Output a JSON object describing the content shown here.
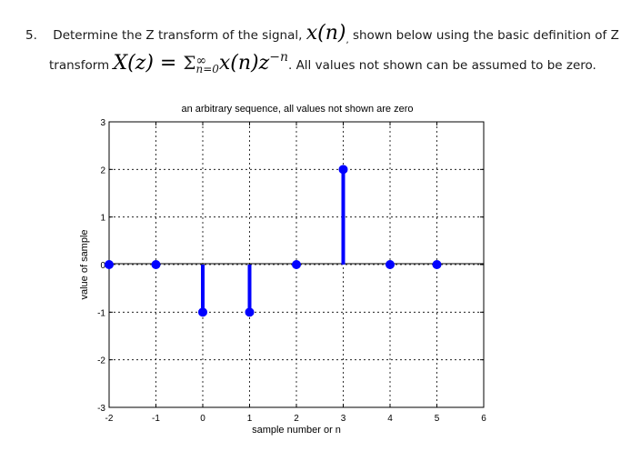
{
  "question": {
    "number": "5.",
    "line1_text": "Determine the Z transform of the signal,",
    "line1_math": "x(n)",
    "line1_punct": ",",
    "line1_tail": "shown below using the basic definition of Z",
    "line2_text": "transform",
    "formula_lhs": "X(z) = ",
    "formula_sum": "Σ",
    "formula_upper": "∞",
    "formula_lower": "n=0",
    "formula_term": "x(n)z",
    "formula_exp": "−n",
    "line2_tail": ". All values not shown can be assumed to be zero."
  },
  "chart_data": {
    "type": "stem",
    "title": "an arbitrary sequence, all values not shown are zero",
    "xlabel": "sample number or n",
    "ylabel": "value of sample",
    "xlim": [
      -2,
      6
    ],
    "ylim": [
      -3,
      3
    ],
    "xticks": [
      "-2",
      "-1",
      "0",
      "1",
      "2",
      "3",
      "4",
      "5",
      "6"
    ],
    "yticks": [
      "-3",
      "-2",
      "-1",
      "0",
      "1",
      "2",
      "3"
    ],
    "grid": true,
    "color": "#0000ff",
    "series": [
      {
        "x": [
          -2,
          -1,
          0,
          1,
          2,
          3,
          4,
          5
        ],
        "values": [
          0,
          0,
          -1,
          -1,
          0,
          2,
          0,
          0
        ]
      }
    ]
  }
}
